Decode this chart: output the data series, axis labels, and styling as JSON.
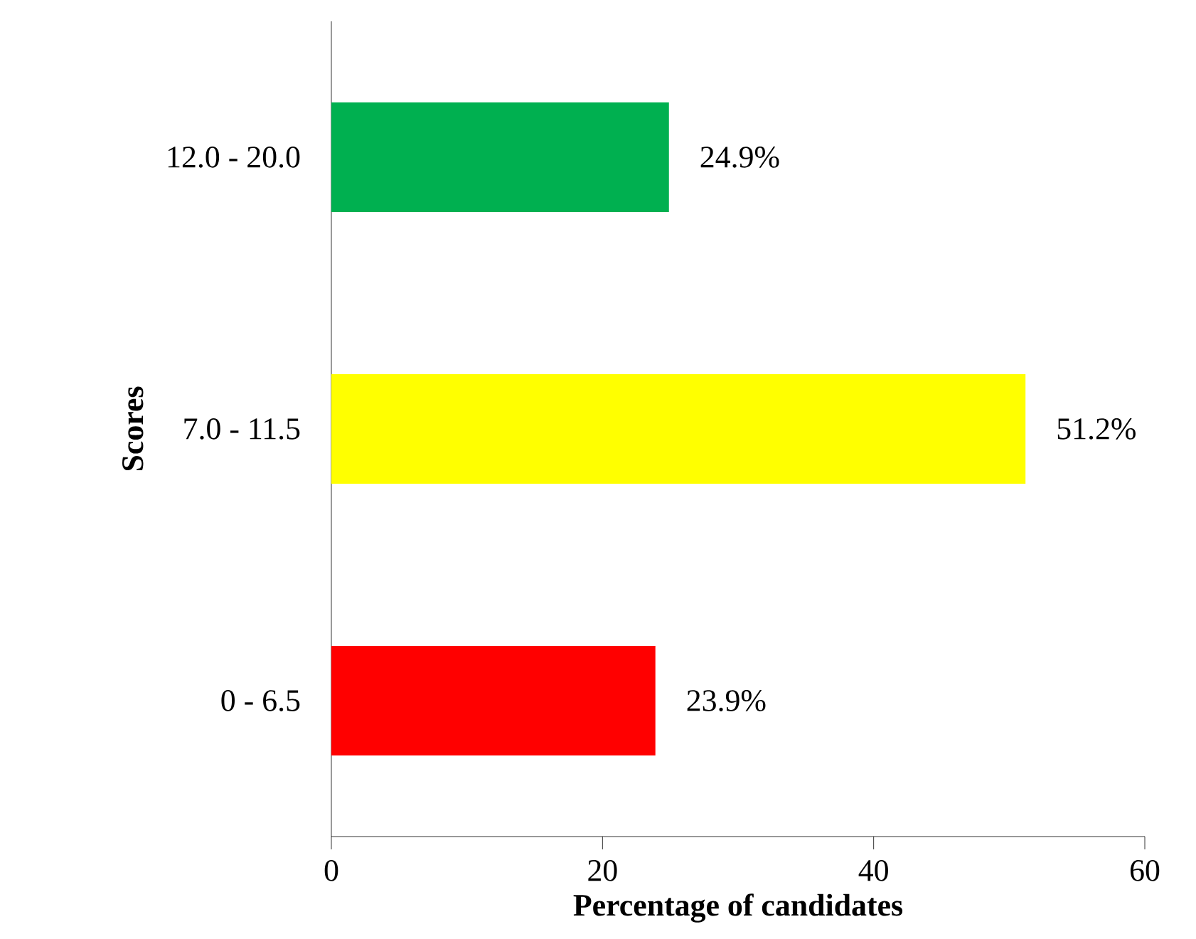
{
  "chart_data": {
    "type": "bar",
    "orientation": "horizontal",
    "xlabel": "Percentage of candidates",
    "ylabel": "Scores",
    "categories": [
      "12.0 - 20.0",
      "7.0 - 11.5",
      "0 - 6.5"
    ],
    "values": [
      24.9,
      51.2,
      23.9
    ],
    "colors": [
      "#00b050",
      "#ffff00",
      "#ff0000"
    ],
    "value_labels": [
      "24.9%",
      "51.2%",
      "23.9%"
    ],
    "xlim": [
      0,
      60
    ],
    "xticks": [
      0,
      20,
      40,
      60
    ]
  }
}
